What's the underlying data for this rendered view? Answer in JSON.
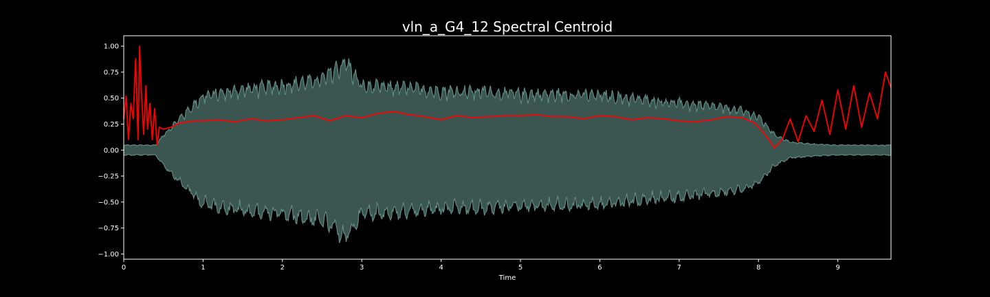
{
  "chart_data": {
    "type": "line",
    "title": "vln_a_G4_12 Spectral Centroid",
    "xlabel": "Time",
    "ylabel": "",
    "xlim": [
      0,
      9.67
    ],
    "ylim": [
      -1.05,
      1.1
    ],
    "x_ticks": [
      0,
      1,
      2,
      3,
      4,
      5,
      6,
      7,
      8,
      9
    ],
    "x_tick_labels": [
      "0",
      "1",
      "2",
      "3",
      "4",
      "5",
      "6",
      "7",
      "8",
      "9"
    ],
    "y_ticks": [
      1.0,
      0.75,
      0.5,
      0.25,
      0.0,
      -0.25,
      -0.5,
      -0.75,
      -1.0
    ],
    "y_tick_labels": [
      "1.00",
      "0.75",
      "0.50",
      "0.25",
      "0.00",
      "−0.25",
      "−0.50",
      "−0.75",
      "−1.00"
    ],
    "grid": false,
    "legend": "none",
    "background": "#000000",
    "waveform": {
      "fill_color": "#3b5650",
      "edge_color": "#5f8c84",
      "envelope_time": [
        0,
        0.4,
        0.5,
        0.7,
        1.0,
        1.5,
        2.0,
        2.5,
        2.8,
        3.0,
        3.5,
        4.0,
        4.5,
        5.0,
        5.5,
        6.0,
        6.5,
        7.0,
        7.5,
        7.8,
        8.0,
        8.2,
        8.4,
        8.7,
        9.0,
        9.67
      ],
      "envelope_amplitude": [
        0.05,
        0.05,
        0.15,
        0.32,
        0.55,
        0.62,
        0.66,
        0.72,
        0.9,
        0.65,
        0.64,
        0.6,
        0.6,
        0.57,
        0.57,
        0.56,
        0.52,
        0.48,
        0.44,
        0.4,
        0.34,
        0.16,
        0.08,
        0.06,
        0.05,
        0.05
      ]
    },
    "series": [
      {
        "color": "#ff0000",
        "x": [
          0.0,
          0.03,
          0.06,
          0.09,
          0.12,
          0.15,
          0.18,
          0.2,
          0.22,
          0.25,
          0.28,
          0.3,
          0.33,
          0.36,
          0.39,
          0.42,
          0.45,
          0.5,
          0.6,
          0.7,
          0.8,
          0.9,
          1.0,
          1.2,
          1.4,
          1.6,
          1.8,
          2.0,
          2.2,
          2.4,
          2.6,
          2.8,
          3.0,
          3.2,
          3.4,
          3.6,
          3.8,
          4.0,
          4.2,
          4.4,
          4.6,
          4.8,
          5.0,
          5.2,
          5.4,
          5.6,
          5.8,
          6.0,
          6.2,
          6.4,
          6.6,
          6.8,
          7.0,
          7.2,
          7.4,
          7.6,
          7.8,
          7.95,
          8.05,
          8.15,
          8.2,
          8.3,
          8.4,
          8.5,
          8.6,
          8.7,
          8.8,
          8.9,
          9.0,
          9.1,
          9.2,
          9.3,
          9.4,
          9.5,
          9.6,
          9.67
        ],
        "y": [
          0.3,
          0.52,
          0.1,
          0.45,
          0.3,
          0.88,
          0.1,
          1.0,
          0.6,
          0.15,
          0.62,
          0.2,
          0.45,
          0.1,
          0.4,
          0.05,
          0.22,
          0.2,
          0.22,
          0.26,
          0.27,
          0.28,
          0.28,
          0.29,
          0.27,
          0.3,
          0.28,
          0.29,
          0.31,
          0.33,
          0.28,
          0.33,
          0.31,
          0.35,
          0.37,
          0.34,
          0.32,
          0.29,
          0.33,
          0.31,
          0.32,
          0.33,
          0.33,
          0.34,
          0.32,
          0.32,
          0.3,
          0.33,
          0.32,
          0.29,
          0.31,
          0.3,
          0.28,
          0.27,
          0.29,
          0.32,
          0.31,
          0.26,
          0.18,
          0.08,
          0.02,
          0.1,
          0.3,
          0.08,
          0.33,
          0.18,
          0.48,
          0.15,
          0.58,
          0.2,
          0.62,
          0.22,
          0.55,
          0.3,
          0.75,
          0.6
        ]
      }
    ]
  }
}
